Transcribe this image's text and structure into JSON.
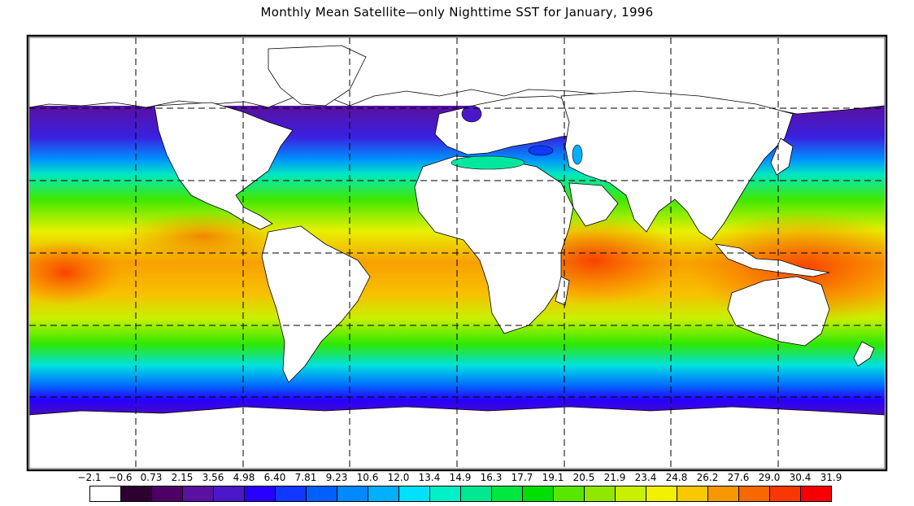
{
  "title": "Monthly Mean Satellite—only Nighttime SST for January, 1996",
  "map": {
    "projection": "equirectangular",
    "grid_style": "dashed",
    "land_color": "#ffffff",
    "coastline_color": "#000000",
    "missing_value_color": "#ffffff"
  },
  "colorbar": {
    "tick_labels": [
      "−2.1",
      "−0.6",
      "0.73",
      "2.15",
      "3.56",
      "4.98",
      "6.40",
      "7.81",
      "9.23",
      "10.6",
      "12.0",
      "13.4",
      "14.9",
      "16.3",
      "17.7",
      "19.1",
      "20.5",
      "21.9",
      "23.4",
      "24.8",
      "26.2",
      "27.6",
      "29.0",
      "30.4",
      "31.9"
    ],
    "colors": [
      "#ffffff",
      "#2d0030",
      "#4d0068",
      "#5a10a0",
      "#4a18c8",
      "#2800ff",
      "#1038ff",
      "#0060ff",
      "#0088ff",
      "#00b0ff",
      "#00e0ff",
      "#00f0c8",
      "#00e890",
      "#00e840",
      "#00e000",
      "#58e800",
      "#90e800",
      "#c8f000",
      "#f0f000",
      "#f8c800",
      "#f89800",
      "#f86800",
      "#f83800",
      "#f80000"
    ]
  }
}
